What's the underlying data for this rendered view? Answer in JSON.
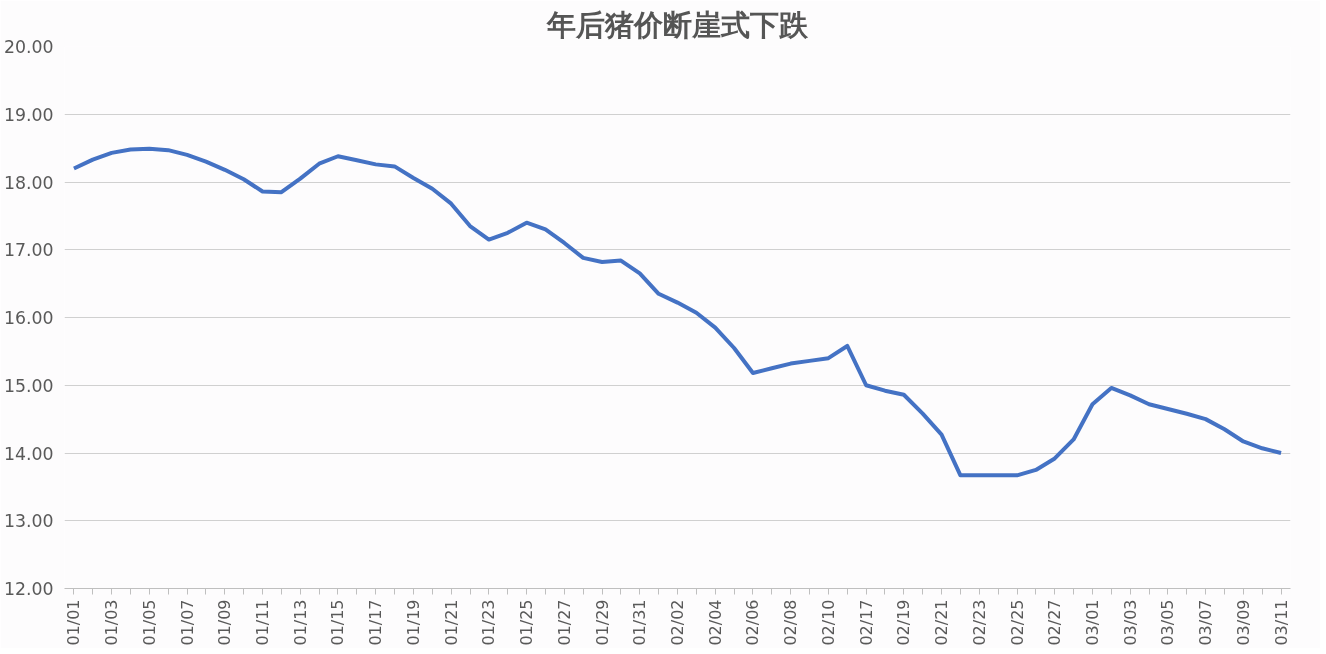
{
  "chart_data": {
    "type": "line",
    "title": "年后猪价断崖式下跌",
    "categories": [
      "01/01",
      null,
      "01/03",
      null,
      "01/05",
      null,
      "01/07",
      null,
      "01/09",
      null,
      "01/11",
      null,
      "01/13",
      null,
      "01/15",
      null,
      "01/17",
      null,
      "01/19",
      null,
      "01/21",
      null,
      "01/23",
      null,
      "01/25",
      null,
      "01/27",
      null,
      "01/29",
      null,
      "01/31",
      null,
      "02/02",
      null,
      "02/04",
      null,
      "02/06",
      null,
      "02/08",
      null,
      "02/10",
      null,
      "02/17",
      null,
      "02/19",
      null,
      "02/21",
      null,
      "02/23",
      null,
      "02/25",
      null,
      "02/27",
      null,
      "03/01",
      null,
      "03/03",
      null,
      "03/05",
      null,
      "03/07",
      null,
      "03/09",
      null,
      "03/11"
    ],
    "values": [
      18.2,
      18.33,
      18.43,
      18.48,
      18.49,
      18.47,
      18.4,
      18.3,
      18.18,
      18.04,
      17.86,
      17.85,
      18.05,
      18.27,
      18.38,
      18.32,
      18.26,
      18.23,
      18.06,
      17.9,
      17.68,
      17.35,
      17.15,
      17.25,
      17.4,
      17.3,
      17.1,
      16.88,
      16.82,
      16.84,
      16.65,
      16.35,
      16.22,
      16.07,
      15.85,
      15.55,
      15.18,
      15.25,
      15.32,
      15.36,
      15.4,
      15.58,
      15.0,
      14.92,
      14.86,
      14.58,
      14.27,
      13.67,
      13.67,
      13.67,
      13.67,
      13.75,
      13.92,
      14.2,
      14.72,
      14.96,
      14.85,
      14.72,
      14.65,
      14.58,
      14.5,
      14.35,
      14.17,
      14.07,
      14.0
    ],
    "color": "#4472c4",
    "ylim": [
      12,
      20
    ],
    "yticks": [
      {
        "value": 12,
        "label": "12.00"
      },
      {
        "value": 13,
        "label": "13.00"
      },
      {
        "value": 14,
        "label": "14.00"
      },
      {
        "value": 15,
        "label": "15.00"
      },
      {
        "value": 16,
        "label": "16.00"
      },
      {
        "value": 17,
        "label": "17.00"
      },
      {
        "value": 18,
        "label": "18.00"
      },
      {
        "value": 19,
        "label": "19.00"
      },
      {
        "value": 20,
        "label": "20.00"
      }
    ],
    "grid": "y",
    "line_style": "solid"
  }
}
